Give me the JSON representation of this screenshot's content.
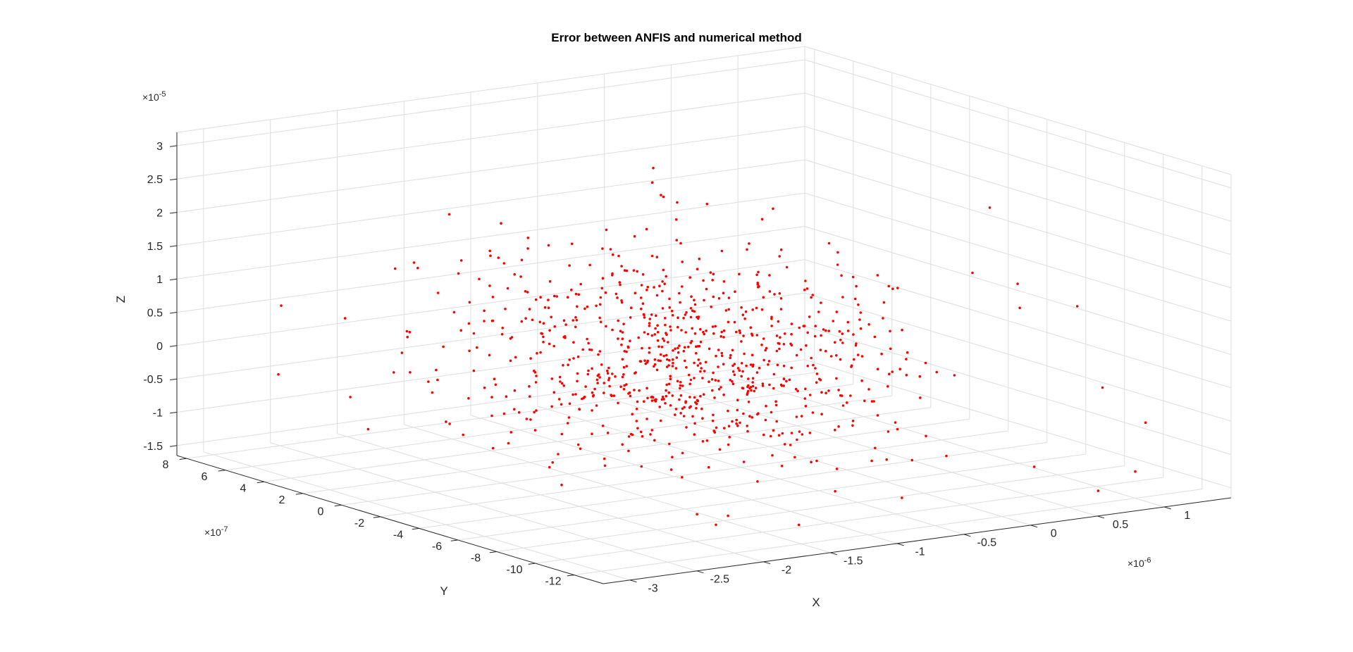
{
  "chart_data": {
    "type": "scatter",
    "title": "Error between ANFIS and numerical method",
    "xlabel": "X",
    "ylabel": "Y",
    "zlabel": "Z",
    "x_exponent": "×10",
    "x_exponent_power": "-6",
    "y_exponent": "×10",
    "y_exponent_power": "-7",
    "z_exponent": "×10",
    "z_exponent_power": "-5",
    "xlim": [
      -3.2,
      1.5
    ],
    "ylim": [
      -13.5,
      8.5
    ],
    "zlim": [
      -1.65,
      3.2
    ],
    "grid": true,
    "marker_color": "#ff0000",
    "x_ticks": [
      {
        "v": -3,
        "label": "-3"
      },
      {
        "v": -2.5,
        "label": "-2.5"
      },
      {
        "v": -2,
        "label": "-2"
      },
      {
        "v": -1.5,
        "label": "-1.5"
      },
      {
        "v": -1,
        "label": "-1"
      },
      {
        "v": -0.5,
        "label": "-0.5"
      },
      {
        "v": 0,
        "label": "0"
      },
      {
        "v": 0.5,
        "label": "0.5"
      },
      {
        "v": 1,
        "label": "1"
      }
    ],
    "y_ticks": [
      {
        "v": 8,
        "label": "8"
      },
      {
        "v": 6,
        "label": "6"
      },
      {
        "v": 4,
        "label": "4"
      },
      {
        "v": 2,
        "label": "2"
      },
      {
        "v": 0,
        "label": "0"
      },
      {
        "v": -2,
        "label": "-2"
      },
      {
        "v": -4,
        "label": "-4"
      },
      {
        "v": -6,
        "label": "-6"
      },
      {
        "v": -8,
        "label": "-8"
      },
      {
        "v": -10,
        "label": "-10"
      },
      {
        "v": -12,
        "label": "-12"
      }
    ],
    "z_ticks": [
      {
        "v": 3,
        "label": "3"
      },
      {
        "v": 2.5,
        "label": "2.5"
      },
      {
        "v": 2,
        "label": "2"
      },
      {
        "v": 1.5,
        "label": "1.5"
      },
      {
        "v": 1,
        "label": "1"
      },
      {
        "v": 0.5,
        "label": "0.5"
      },
      {
        "v": 0,
        "label": "0"
      },
      {
        "v": -0.5,
        "label": "-0.5"
      },
      {
        "v": -1,
        "label": "-1"
      },
      {
        "v": -1.5,
        "label": "-1.5"
      }
    ],
    "points_spec": {
      "count": 850,
      "x_mean": -0.9,
      "x_std": 0.65,
      "y_mean": -2.0,
      "y_std": 3.6,
      "z_mean": 0.1,
      "z_std": 0.75
    },
    "points": [
      {
        "x": -2.55,
        "y": 7.6,
        "z": 0.5
      },
      {
        "x": -2.6,
        "y": 7.4,
        "z": -0.5
      },
      {
        "x": -2.45,
        "y": 3.8,
        "z": -1.05
      },
      {
        "x": -2.2,
        "y": 4.2,
        "z": -0.3
      },
      {
        "x": -1.9,
        "y": 6.2,
        "z": 1.0
      },
      {
        "x": -2.0,
        "y": 2.0,
        "z": -1.1
      },
      {
        "x": -1.75,
        "y": 1.5,
        "z": -0.55
      },
      {
        "x": -1.6,
        "y": 5.0,
        "z": 0.95
      },
      {
        "x": -1.85,
        "y": 1.0,
        "z": 0.55
      },
      {
        "x": -0.7,
        "y": 1.2,
        "z": 2.4
      },
      {
        "x": -1.1,
        "y": -2.0,
        "z": 2.6
      },
      {
        "x": -0.9,
        "y": -3.0,
        "z": 2.5
      },
      {
        "x": 0.7,
        "y": -8.0,
        "z": 1.3
      },
      {
        "x": 1.15,
        "y": -11.5,
        "z": -0.6
      },
      {
        "x": 1.0,
        "y": -12.0,
        "z": -1.25
      },
      {
        "x": 0.65,
        "y": -12.5,
        "z": -1.4
      },
      {
        "x": 0.9,
        "y": -11.0,
        "z": -0.05
      },
      {
        "x": 0.2,
        "y": -5.0,
        "z": 1.1
      },
      {
        "x": -1.3,
        "y": -10.5,
        "z": -1.55
      },
      {
        "x": -1.7,
        "y": -8.0,
        "z": -1.5
      }
    ]
  }
}
